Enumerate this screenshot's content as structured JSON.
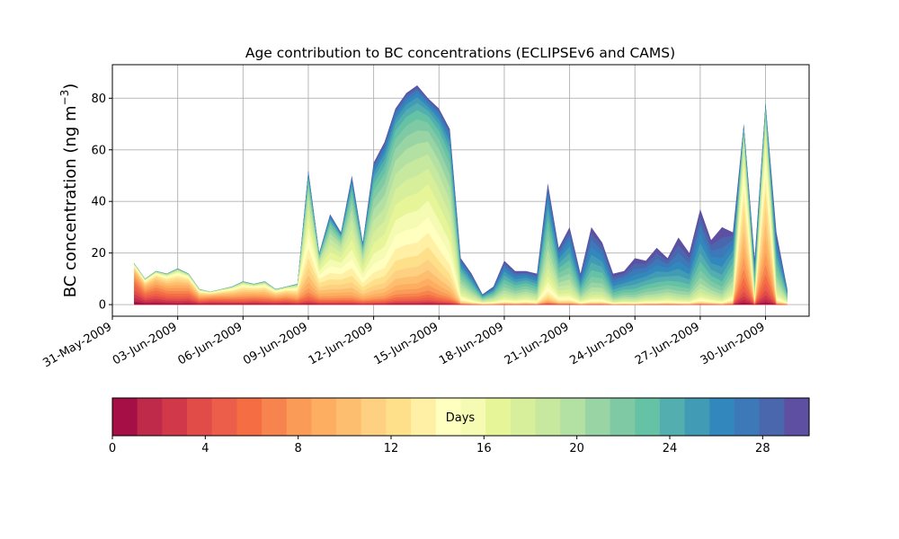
{
  "chart_data": {
    "type": "area",
    "title": "Age contribution to BC concentrations (ECLIPSEv6 and CAMS)",
    "ylabel_main": "BC concentration (ng m",
    "ylabel_sup": "−3",
    "ylabel_close": ")",
    "xlabel": "",
    "ylim": [
      -4.5,
      93
    ],
    "xlim": [
      "2009-05-31",
      "2009-07-02"
    ],
    "grid": true,
    "legend": "colorbar below plot",
    "y_ticks": [
      "0",
      "20",
      "40",
      "60",
      "80"
    ],
    "x_ticks": [
      "31-May-2009",
      "03-Jun-2009",
      "06-Jun-2009",
      "09-Jun-2009",
      "12-Jun-2009",
      "15-Jun-2009",
      "18-Jun-2009",
      "21-Jun-2009",
      "24-Jun-2009",
      "27-Jun-2009",
      "30-Jun-2009"
    ],
    "colorbar": {
      "label": "Days",
      "range": [
        0,
        30
      ],
      "ticks": [
        "0",
        "4",
        "8",
        "12",
        "16",
        "20",
        "24",
        "28"
      ],
      "colors": [
        "#a50f45",
        "#bf2a4a",
        "#d1394b",
        "#e14c49",
        "#ec5d4a",
        "#f46d43",
        "#f7844e",
        "#fa9b58",
        "#fdae61",
        "#fdbf6f",
        "#fed182",
        "#fee08b",
        "#fff0a6",
        "#ffffbf",
        "#f5fbb2",
        "#e6f598",
        "#d7ee9b",
        "#c7e89f",
        "#b3e0a3",
        "#99d5a4",
        "#7fcaa4",
        "#66c2a5",
        "#53aeb0",
        "#429bb4",
        "#3288bd",
        "#3d78b8",
        "#4a67ae",
        "#5e4fa2"
      ]
    },
    "x_dates": [
      "2009-06-01",
      "2009-06-01T12",
      "2009-06-02",
      "2009-06-02T12",
      "2009-06-03",
      "2009-06-03T12",
      "2009-06-04",
      "2009-06-04T12",
      "2009-06-05",
      "2009-06-05T12",
      "2009-06-06",
      "2009-06-06T12",
      "2009-06-07",
      "2009-06-07T12",
      "2009-06-08",
      "2009-06-08T12",
      "2009-06-09",
      "2009-06-09T12",
      "2009-06-10",
      "2009-06-10T12",
      "2009-06-11",
      "2009-06-11T12",
      "2009-06-12",
      "2009-06-12T12",
      "2009-06-13",
      "2009-06-13T12",
      "2009-06-14",
      "2009-06-14T12",
      "2009-06-15",
      "2009-06-15T12",
      "2009-06-16",
      "2009-06-16T12",
      "2009-06-17",
      "2009-06-17T12",
      "2009-06-18",
      "2009-06-18T12",
      "2009-06-19",
      "2009-06-19T12",
      "2009-06-20",
      "2009-06-20T12",
      "2009-06-21",
      "2009-06-21T12",
      "2009-06-22",
      "2009-06-22T12",
      "2009-06-23",
      "2009-06-23T12",
      "2009-06-24",
      "2009-06-24T12",
      "2009-06-25",
      "2009-06-25T12",
      "2009-06-26",
      "2009-06-26T12",
      "2009-06-27",
      "2009-06-27T12",
      "2009-06-28",
      "2009-06-28T12",
      "2009-06-29",
      "2009-06-29T12",
      "2009-06-30",
      "2009-06-30T12",
      "2009-07-01"
    ],
    "total_bc": [
      16,
      10,
      13,
      12,
      14,
      12,
      6,
      5,
      6,
      7,
      9,
      8,
      9,
      6,
      7,
      8,
      52,
      20,
      35,
      28,
      50,
      24,
      55,
      63,
      76,
      82,
      85,
      80,
      76,
      68,
      18,
      12,
      4,
      7,
      17,
      13,
      13,
      12,
      47,
      22,
      30,
      12,
      30,
      24,
      12,
      13,
      18,
      17,
      22,
      18,
      26,
      20,
      37,
      25,
      30,
      28,
      70,
      18,
      78,
      28,
      6
    ],
    "dominant_age_day": [
      4,
      6,
      6,
      7,
      8,
      7,
      8,
      6,
      7,
      8,
      9,
      8,
      9,
      8,
      8,
      10,
      14,
      13,
      15,
      14,
      16,
      15,
      17,
      17,
      16,
      16,
      16,
      15,
      16,
      17,
      20,
      21,
      20,
      21,
      22,
      22,
      21,
      22,
      20,
      21,
      22,
      23,
      24,
      23,
      25,
      24,
      26,
      24,
      25,
      23,
      26,
      25,
      24,
      24,
      27,
      22,
      11,
      22,
      11,
      22,
      21
    ]
  }
}
